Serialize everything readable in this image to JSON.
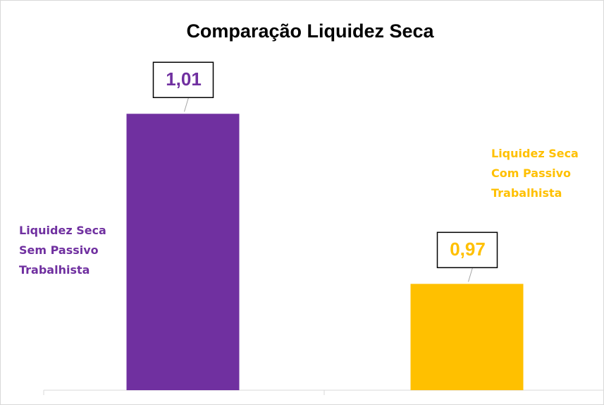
{
  "chart_data": {
    "type": "bar",
    "title": "Comparação Liquidez Seca",
    "categories": [
      "Liquidez Seca Sem Passivo Trabalhista",
      "Liquidez Seca Com Passivo Trabalhista"
    ],
    "values": [
      1.01,
      0.97
    ],
    "value_labels": [
      "1,01",
      "0,97"
    ],
    "colors": [
      "#7030a0",
      "#ffc000"
    ],
    "ylim": [
      0.945,
      1.02
    ]
  }
}
